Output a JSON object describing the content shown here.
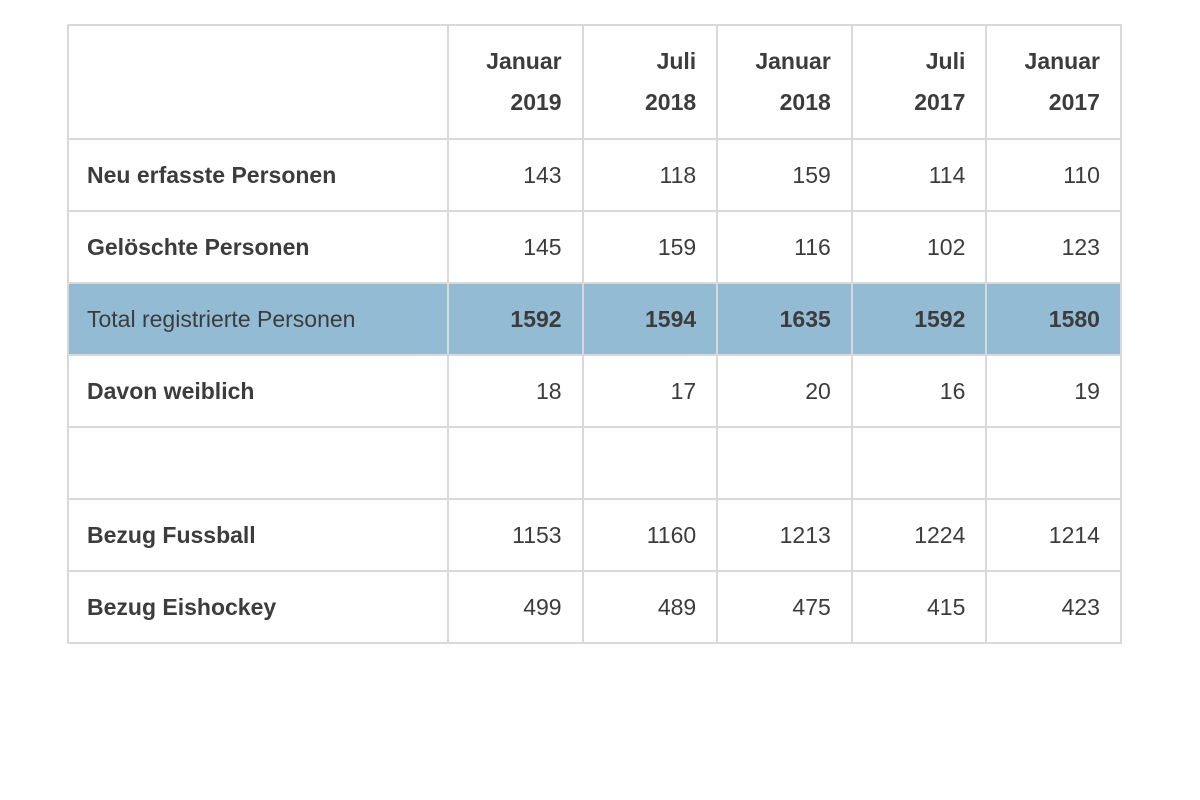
{
  "chart_data": {
    "type": "table",
    "title": "",
    "columns": [
      {
        "month": "Januar",
        "year": "2019"
      },
      {
        "month": "Juli",
        "year": "2018"
      },
      {
        "month": "Januar",
        "year": "2018"
      },
      {
        "month": "Juli",
        "year": "2017"
      },
      {
        "month": "Januar",
        "year": "2017"
      }
    ],
    "rows": [
      {
        "label": "Neu erfasste Personen",
        "values": [
          "143",
          "118",
          "159",
          "114",
          "110"
        ],
        "highlighted": false
      },
      {
        "label": "Gelöschte Personen",
        "values": [
          "145",
          "159",
          "116",
          "102",
          "123"
        ],
        "highlighted": false
      },
      {
        "label": "Total registrierte Personen",
        "values": [
          "1592",
          "1594",
          "1635",
          "1592",
          "1580"
        ],
        "highlighted": true
      },
      {
        "label": "Davon weiblich",
        "values": [
          "18",
          "17",
          "20",
          "16",
          "19"
        ],
        "highlighted": false
      },
      {
        "label": "",
        "values": [
          "",
          "",
          "",
          "",
          ""
        ],
        "highlighted": false
      },
      {
        "label": "Bezug Fussball",
        "values": [
          "1153",
          "1160",
          "1213",
          "1224",
          "1214"
        ],
        "highlighted": false
      },
      {
        "label": "Bezug Eishockey",
        "values": [
          "499",
          "489",
          "475",
          "415",
          "423"
        ],
        "highlighted": false
      }
    ]
  },
  "colors": {
    "highlight_row": "#93bcd4",
    "grid_line": "#d9d9d9",
    "text": "#3c3c3c",
    "background": "#ffffff"
  }
}
